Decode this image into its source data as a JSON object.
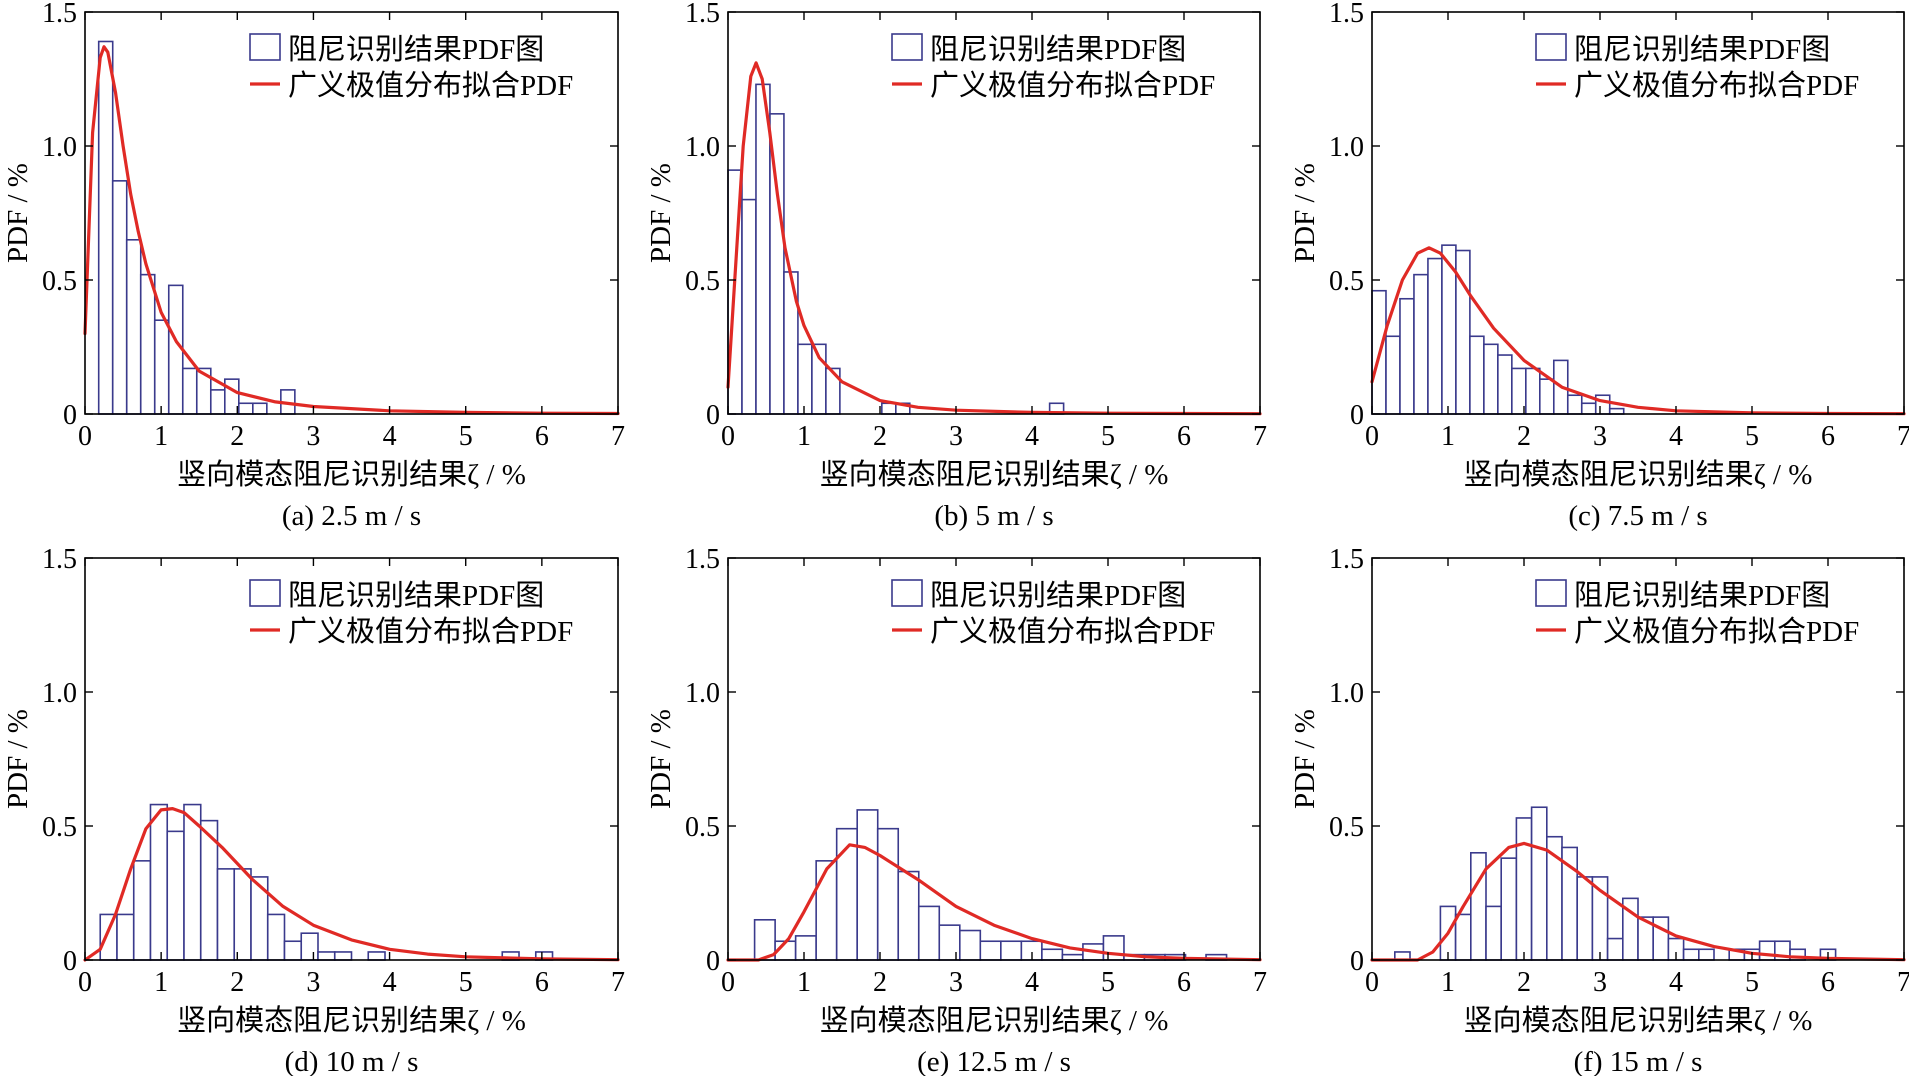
{
  "figure": {
    "legend_hist": "阻尼识别结果PDF图",
    "legend_fit": "广义极值分布拟合PDF",
    "xlabel": "竖向模态阻尼识别结果ζ / %",
    "ylabel": "PDF / %",
    "colors": {
      "hist": "#3a3a8c",
      "fit": "#e02a25",
      "axis": "#000000"
    }
  },
  "chart_data": [
    {
      "type": "bar",
      "caption": "(a) 2.5 m / s",
      "xlim": [
        0,
        7
      ],
      "ylim": [
        0,
        1.5
      ],
      "xticks": [
        0,
        1,
        2,
        3,
        4,
        5,
        6,
        7
      ],
      "yticks": [
        0,
        0.5,
        1.0,
        1.5
      ],
      "ytick_labels": [
        "0",
        "0.5",
        "1.0",
        "1.5"
      ],
      "grid": false,
      "legend_position": "top-right",
      "bin_width": 0.184,
      "bin_starts": [
        0.18,
        0.364,
        0.548,
        0.732,
        0.916,
        1.1,
        1.284,
        1.468,
        1.652,
        1.836,
        2.02,
        2.204,
        2.388,
        2.572
      ],
      "hist_values": [
        1.39,
        0.87,
        0.65,
        0.52,
        0.35,
        0.48,
        0.17,
        0.17,
        0.09,
        0.13,
        0.04,
        0.04,
        0.0,
        0.09
      ],
      "fit_x": [
        0.0,
        0.1,
        0.2,
        0.25,
        0.3,
        0.4,
        0.5,
        0.6,
        0.7,
        0.8,
        1.0,
        1.2,
        1.5,
        2.0,
        2.5,
        3.0,
        4.0,
        5.0,
        6.0,
        7.0
      ],
      "fit_y": [
        0.3,
        1.05,
        1.33,
        1.37,
        1.35,
        1.2,
        1.0,
        0.82,
        0.68,
        0.56,
        0.38,
        0.27,
        0.16,
        0.08,
        0.045,
        0.028,
        0.012,
        0.006,
        0.003,
        0.002
      ]
    },
    {
      "type": "bar",
      "caption": "(b) 5 m / s",
      "xlim": [
        0,
        7
      ],
      "ylim": [
        0,
        1.5
      ],
      "xticks": [
        0,
        1,
        2,
        3,
        4,
        5,
        6,
        7
      ],
      "yticks": [
        0,
        0.5,
        1.0,
        1.5
      ],
      "ytick_labels": [
        "0",
        "0.5",
        "1.0",
        "1.5"
      ],
      "grid": false,
      "legend_position": "top-right",
      "bin_width": 0.184,
      "bin_starts": [
        0.0,
        0.184,
        0.368,
        0.552,
        0.736,
        0.92,
        1.104,
        1.288,
        1.472,
        1.656,
        1.84,
        2.024,
        2.208,
        2.392,
        2.576,
        2.76,
        2.944,
        3.128,
        3.312,
        3.496,
        3.68,
        3.864,
        4.048,
        4.232
      ],
      "hist_values": [
        0.91,
        0.8,
        1.23,
        1.12,
        0.53,
        0.26,
        0.26,
        0.17,
        0.0,
        0.0,
        0.0,
        0.04,
        0.04,
        0.0,
        0.0,
        0.0,
        0.0,
        0.0,
        0.0,
        0.0,
        0.0,
        0.0,
        0.0,
        0.04
      ],
      "fit_x": [
        0.0,
        0.1,
        0.2,
        0.3,
        0.37,
        0.45,
        0.55,
        0.65,
        0.75,
        0.9,
        1.0,
        1.2,
        1.5,
        2.0,
        2.5,
        3.0,
        4.0,
        5.0,
        6.0,
        7.0
      ],
      "fit_y": [
        0.1,
        0.55,
        1.0,
        1.26,
        1.31,
        1.25,
        1.05,
        0.82,
        0.62,
        0.42,
        0.33,
        0.21,
        0.12,
        0.05,
        0.025,
        0.014,
        0.006,
        0.003,
        0.002,
        0.001
      ]
    },
    {
      "type": "bar",
      "caption": "(c) 7.5 m / s",
      "xlim": [
        0,
        7
      ],
      "ylim": [
        0,
        1.5
      ],
      "xticks": [
        0,
        1,
        2,
        3,
        4,
        5,
        6,
        7
      ],
      "yticks": [
        0,
        0.5,
        1.0,
        1.5
      ],
      "ytick_labels": [
        "0",
        "0.5",
        "1.0",
        "1.5"
      ],
      "grid": false,
      "legend_position": "top-right",
      "bin_width": 0.184,
      "bin_starts": [
        0.0,
        0.184,
        0.368,
        0.552,
        0.736,
        0.92,
        1.104,
        1.288,
        1.472,
        1.656,
        1.84,
        2.024,
        2.208,
        2.392,
        2.576,
        2.76,
        2.944,
        3.128
      ],
      "hist_values": [
        0.46,
        0.29,
        0.43,
        0.52,
        0.58,
        0.63,
        0.61,
        0.29,
        0.26,
        0.22,
        0.17,
        0.17,
        0.13,
        0.2,
        0.07,
        0.04,
        0.07,
        0.02
      ],
      "fit_x": [
        0.0,
        0.2,
        0.4,
        0.6,
        0.75,
        0.9,
        1.1,
        1.3,
        1.6,
        2.0,
        2.5,
        3.0,
        3.5,
        4.0,
        5.0,
        6.0,
        7.0
      ],
      "fit_y": [
        0.12,
        0.33,
        0.5,
        0.6,
        0.62,
        0.6,
        0.53,
        0.44,
        0.32,
        0.2,
        0.1,
        0.05,
        0.025,
        0.012,
        0.004,
        0.002,
        0.001
      ]
    },
    {
      "type": "bar",
      "caption": "(d) 10 m / s",
      "xlim": [
        0,
        7
      ],
      "ylim": [
        0,
        1.5
      ],
      "xticks": [
        0,
        1,
        2,
        3,
        4,
        5,
        6,
        7
      ],
      "yticks": [
        0,
        0.5,
        1.0,
        1.5
      ],
      "ytick_labels": [
        "0",
        "0.5",
        "1.0",
        "1.5"
      ],
      "grid": false,
      "legend_position": "top-right",
      "bin_width": 0.22,
      "bin_starts": [
        0.2,
        0.42,
        0.64,
        0.86,
        1.08,
        1.3,
        1.52,
        1.74,
        1.96,
        2.18,
        2.4,
        2.62,
        2.84,
        3.06,
        3.28,
        3.5,
        3.72,
        3.94,
        4.16,
        4.38,
        4.6,
        4.82,
        5.04,
        5.26,
        5.48,
        5.7,
        5.92
      ],
      "hist_values": [
        0.17,
        0.17,
        0.37,
        0.58,
        0.48,
        0.58,
        0.52,
        0.34,
        0.34,
        0.31,
        0.17,
        0.07,
        0.1,
        0.03,
        0.03,
        0.0,
        0.03,
        0.0,
        0.0,
        0.0,
        0.0,
        0.0,
        0.0,
        0.0,
        0.03,
        0.0,
        0.03
      ],
      "fit_x": [
        0.0,
        0.2,
        0.4,
        0.6,
        0.8,
        1.0,
        1.15,
        1.3,
        1.5,
        1.8,
        2.2,
        2.6,
        3.0,
        3.5,
        4.0,
        4.5,
        5.0,
        6.0,
        7.0
      ],
      "fit_y": [
        0.0,
        0.04,
        0.17,
        0.34,
        0.49,
        0.56,
        0.565,
        0.55,
        0.5,
        0.42,
        0.3,
        0.2,
        0.13,
        0.075,
        0.04,
        0.022,
        0.012,
        0.004,
        0.001
      ]
    },
    {
      "type": "bar",
      "caption": "(e) 12.5 m / s",
      "xlim": [
        0,
        7
      ],
      "ylim": [
        0,
        1.5
      ],
      "xticks": [
        0,
        1,
        2,
        3,
        4,
        5,
        6,
        7
      ],
      "yticks": [
        0,
        0.5,
        1.0,
        1.5
      ],
      "ytick_labels": [
        "0",
        "0.5",
        "1.0",
        "1.5"
      ],
      "grid": false,
      "legend_position": "top-right",
      "bin_width": 0.27,
      "bin_starts": [
        0.35,
        0.62,
        0.89,
        1.16,
        1.43,
        1.7,
        1.97,
        2.24,
        2.51,
        2.78,
        3.05,
        3.32,
        3.59,
        3.86,
        4.13,
        4.4,
        4.67,
        4.94,
        5.21,
        5.48,
        5.75,
        6.02,
        6.29
      ],
      "hist_values": [
        0.15,
        0.07,
        0.09,
        0.37,
        0.49,
        0.56,
        0.49,
        0.33,
        0.2,
        0.13,
        0.11,
        0.07,
        0.07,
        0.07,
        0.04,
        0.02,
        0.06,
        0.09,
        0.02,
        0.02,
        0.02,
        0.0,
        0.02
      ],
      "fit_x": [
        0.0,
        0.4,
        0.6,
        0.8,
        1.0,
        1.3,
        1.6,
        1.8,
        2.0,
        2.5,
        3.0,
        3.5,
        4.0,
        4.5,
        5.0,
        5.5,
        6.0,
        7.0
      ],
      "fit_y": [
        0.0,
        0.0,
        0.02,
        0.08,
        0.18,
        0.34,
        0.43,
        0.42,
        0.39,
        0.3,
        0.2,
        0.13,
        0.08,
        0.045,
        0.025,
        0.012,
        0.006,
        0.001
      ]
    },
    {
      "type": "bar",
      "caption": "(f) 15 m / s",
      "xlim": [
        0,
        7
      ],
      "ylim": [
        0,
        1.5
      ],
      "xticks": [
        0,
        1,
        2,
        3,
        4,
        5,
        6,
        7
      ],
      "yticks": [
        0,
        0.5,
        1.0,
        1.5
      ],
      "ytick_labels": [
        "0",
        "0.5",
        "1.0",
        "1.5"
      ],
      "grid": false,
      "legend_position": "top-right",
      "bin_width": 0.2,
      "bin_starts": [
        0.3,
        0.5,
        0.7,
        0.9,
        1.1,
        1.3,
        1.5,
        1.7,
        1.9,
        2.1,
        2.3,
        2.5,
        2.7,
        2.9,
        3.1,
        3.3,
        3.5,
        3.7,
        3.9,
        4.1,
        4.3,
        4.5,
        4.7,
        4.9,
        5.1,
        5.3,
        5.5,
        5.7,
        5.9,
        6.1
      ],
      "hist_values": [
        0.03,
        0.0,
        0.0,
        0.2,
        0.17,
        0.4,
        0.2,
        0.38,
        0.53,
        0.57,
        0.46,
        0.42,
        0.31,
        0.31,
        0.08,
        0.23,
        0.16,
        0.16,
        0.08,
        0.04,
        0.04,
        0.0,
        0.04,
        0.04,
        0.07,
        0.07,
        0.04,
        0.0,
        0.04,
        0.0
      ],
      "fit_x": [
        0.0,
        0.6,
        0.8,
        1.0,
        1.2,
        1.5,
        1.8,
        2.0,
        2.3,
        2.7,
        3.0,
        3.5,
        4.0,
        4.5,
        5.0,
        5.5,
        6.0,
        7.0
      ],
      "fit_y": [
        0.0,
        0.0,
        0.03,
        0.1,
        0.2,
        0.34,
        0.42,
        0.435,
        0.41,
        0.33,
        0.26,
        0.16,
        0.09,
        0.05,
        0.025,
        0.012,
        0.006,
        0.001
      ]
    }
  ]
}
